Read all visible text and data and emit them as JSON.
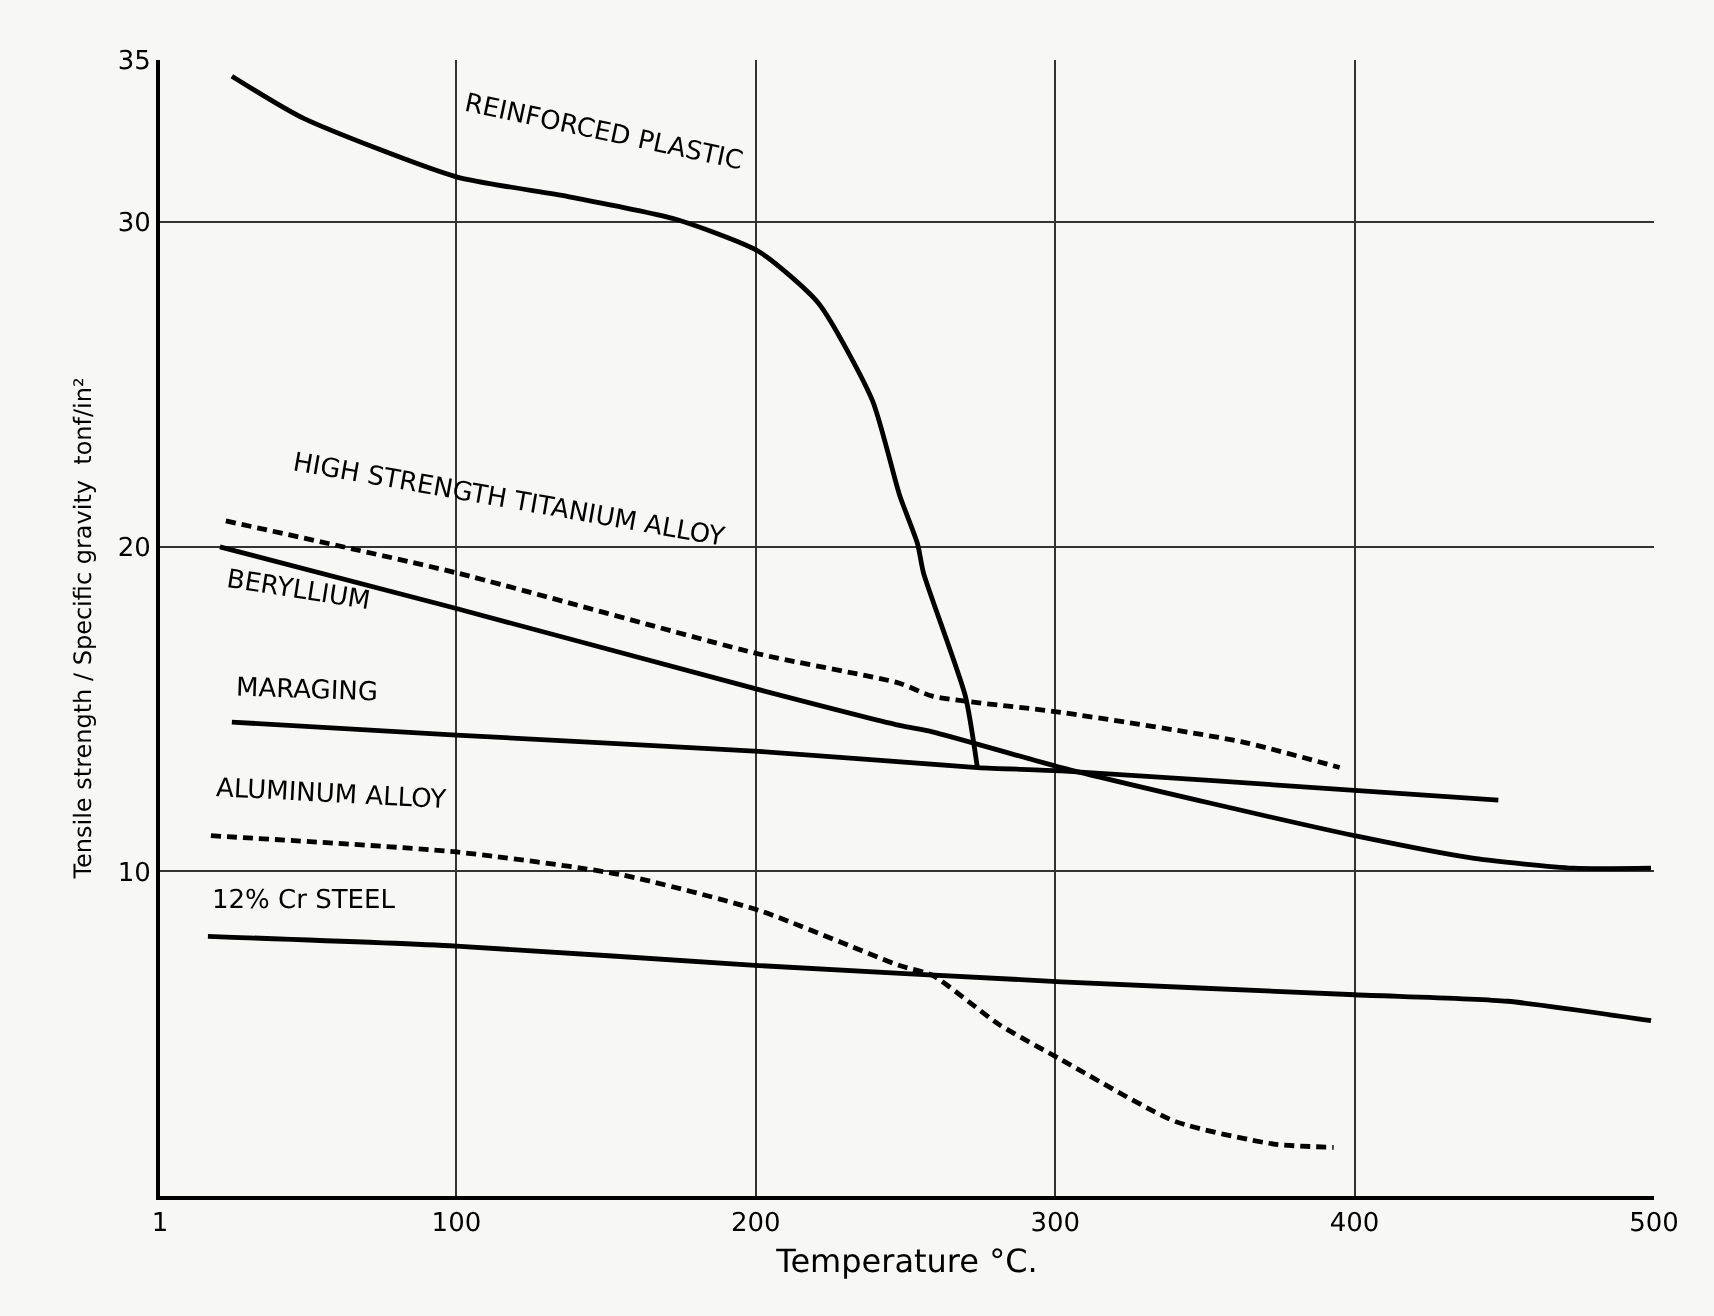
{
  "chart_data": {
    "type": "line",
    "xlabel": "Temperature °C.",
    "ylabel": "Tensile strength / Specific gravity  tonf/in²",
    "xlim": [
      1,
      500
    ],
    "xticks": [
      1,
      100,
      200,
      300,
      400,
      500
    ],
    "ylim": [
      0,
      35
    ],
    "yticks": [
      10,
      20,
      30,
      35
    ],
    "grid": true,
    "legend": false,
    "marker": "none",
    "series": [
      {
        "name": "REINFORCED PLASTIC",
        "color": "#000000",
        "line_style": "solid",
        "x": [
          25,
          49,
          100,
          137,
          173,
          201,
          221,
          239,
          248,
          254,
          256,
          270,
          274
        ],
        "values": [
          34.5,
          33.2,
          31.4,
          30.8,
          30.1,
          29.1,
          27.5,
          24.5,
          21.6,
          20.1,
          19.2,
          15.4,
          13.2
        ]
      },
      {
        "name": "HIGH STRENGTH TITANIUM ALLOY",
        "color": "#000000",
        "line_style": "dashed",
        "x": [
          23,
          100,
          201,
          248,
          259,
          302,
          362,
          395
        ],
        "values": [
          20.8,
          19.2,
          16.7,
          15.8,
          15.4,
          14.9,
          14.0,
          13.2
        ]
      },
      {
        "name": "BERYLLIUM",
        "color": "#000000",
        "line_style": "solid",
        "x": [
          21,
          100,
          201,
          248,
          259,
          302,
          352,
          400,
          440,
          473,
          499
        ],
        "values": [
          20.0,
          18.1,
          15.6,
          14.5,
          14.3,
          13.2,
          12.1,
          11.1,
          10.4,
          10.1,
          10.1
        ]
      },
      {
        "name": "MARAGING",
        "color": "#000000",
        "line_style": "solid",
        "x": [
          25,
          100,
          201,
          274,
          302,
          400,
          448
        ],
        "values": [
          14.6,
          14.2,
          13.7,
          13.2,
          13.1,
          12.5,
          12.2
        ]
      },
      {
        "name": "ALUMINUM ALLOY",
        "color": "#000000",
        "line_style": "dashed",
        "x": [
          18,
          100,
          155,
          201,
          248,
          259,
          281,
          302,
          340,
          373,
          393
        ],
        "values": [
          11.1,
          10.6,
          9.9,
          8.8,
          7.1,
          6.8,
          5.3,
          4.2,
          2.3,
          1.6,
          1.5
        ]
      },
      {
        "name": "12% Cr STEEL",
        "color": "#000000",
        "line_style": "solid",
        "x": [
          17,
          100,
          201,
          302,
          400,
          451,
          499
        ],
        "values": [
          8.0,
          7.7,
          7.1,
          6.6,
          6.2,
          6.0,
          5.4
        ]
      }
    ]
  }
}
